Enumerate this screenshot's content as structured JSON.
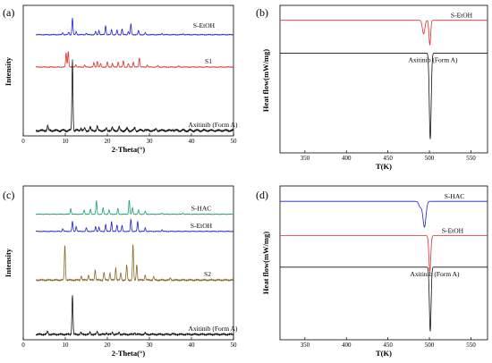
{
  "chart_data": [
    {
      "panel": "(a)",
      "type": "line",
      "xlabel": "2-Theta(°)",
      "ylabel": "Intensity",
      "xlim": [
        0,
        50
      ],
      "xticks": [
        0,
        10,
        20,
        30,
        40,
        50
      ],
      "series": [
        {
          "name": "S-EtOH",
          "color": "#1f1fd6",
          "offset": 0.8,
          "scale": 0.14,
          "peaks": [
            [
              9.4,
              0.12
            ],
            [
              10.8,
              0.15
            ],
            [
              11.7,
              1.0
            ],
            [
              12.6,
              0.18
            ],
            [
              15.0,
              0.1
            ],
            [
              17.2,
              0.2
            ],
            [
              18.0,
              0.25
            ],
            [
              19.6,
              0.55
            ],
            [
              21.0,
              0.3
            ],
            [
              22.3,
              0.28
            ],
            [
              23.5,
              0.35
            ],
            [
              25.0,
              0.2
            ],
            [
              25.6,
              0.65
            ],
            [
              27.4,
              0.25
            ],
            [
              29.0,
              0.12
            ],
            [
              33.0,
              0.08
            ],
            [
              38.0,
              0.06
            ]
          ]
        },
        {
          "name": "S1",
          "color": "#e02b2b",
          "offset": 0.53,
          "scale": 0.14,
          "peaks": [
            [
              10.2,
              0.85
            ],
            [
              10.7,
              0.95
            ],
            [
              12.5,
              0.15
            ],
            [
              14.6,
              0.12
            ],
            [
              16.8,
              0.25
            ],
            [
              17.6,
              0.35
            ],
            [
              18.4,
              0.2
            ],
            [
              20.0,
              0.3
            ],
            [
              21.2,
              0.22
            ],
            [
              22.6,
              0.3
            ],
            [
              23.8,
              0.38
            ],
            [
              25.0,
              0.2
            ],
            [
              26.2,
              0.3
            ],
            [
              27.6,
              0.55
            ],
            [
              29.5,
              0.12
            ],
            [
              32.0,
              0.08
            ],
            [
              37.0,
              0.06
            ]
          ]
        },
        {
          "name": "Axitinib (Form A)",
          "color": "#111111",
          "offset": 0.0,
          "scale": 0.6,
          "peaks": [
            [
              5.8,
              0.07
            ],
            [
              11.7,
              1.0
            ],
            [
              13.7,
              0.04
            ],
            [
              14.6,
              0.03
            ],
            [
              15.9,
              0.05
            ],
            [
              17.6,
              0.06
            ],
            [
              19.8,
              0.03
            ],
            [
              21.2,
              0.04
            ],
            [
              22.8,
              0.05
            ],
            [
              24.7,
              0.03
            ],
            [
              26.5,
              0.04
            ],
            [
              29.0,
              0.02
            ],
            [
              31.6,
              0.02
            ],
            [
              35.5,
              0.02
            ]
          ]
        }
      ]
    },
    {
      "panel": "(b)",
      "type": "line",
      "xlabel": "T(K)",
      "ylabel": "Heat flow(mW/mg)",
      "xlim": [
        320,
        570
      ],
      "xticks": [
        350,
        400,
        450,
        500,
        550
      ],
      "series": [
        {
          "name": "S-EtOH",
          "color": "#e02b2b",
          "baseline": 0.93,
          "dips": [
            [
              493,
              0.1,
              1.3
            ],
            [
              500.5,
              0.18,
              0.9
            ]
          ]
        },
        {
          "name": "Axitinib (Form A)",
          "color": "#111111",
          "baseline": 0.69,
          "dips": [
            [
              501,
              0.63,
              1.0
            ]
          ]
        }
      ]
    },
    {
      "panel": "(c)",
      "type": "line",
      "xlabel": "2-Theta(°)",
      "ylabel": "Intensity",
      "xlim": [
        0,
        50
      ],
      "xticks": [
        0,
        10,
        20,
        30,
        40,
        50
      ],
      "series": [
        {
          "name": "S-HAC",
          "color": "#1a9e77",
          "offset": 0.84,
          "scale": 0.1,
          "peaks": [
            [
              11.3,
              0.4
            ],
            [
              14.5,
              0.3
            ],
            [
              16.0,
              0.35
            ],
            [
              17.4,
              0.95
            ],
            [
              19.0,
              0.45
            ],
            [
              20.4,
              0.3
            ],
            [
              22.5,
              0.4
            ],
            [
              25.2,
              1.0
            ],
            [
              26.0,
              0.45
            ],
            [
              27.4,
              0.3
            ],
            [
              29.0,
              0.2
            ],
            [
              33.0,
              0.1
            ],
            [
              38.0,
              0.08
            ]
          ]
        },
        {
          "name": "S-EtOH",
          "color": "#1f1fd6",
          "offset": 0.72,
          "scale": 0.1,
          "peaks": [
            [
              9.4,
              0.2
            ],
            [
              11.7,
              0.7
            ],
            [
              12.6,
              0.35
            ],
            [
              15.0,
              0.25
            ],
            [
              17.2,
              0.35
            ],
            [
              18.0,
              0.3
            ],
            [
              19.6,
              0.5
            ],
            [
              21.0,
              0.7
            ],
            [
              22.3,
              0.45
            ],
            [
              23.5,
              0.4
            ],
            [
              25.6,
              0.85
            ],
            [
              27.2,
              0.7
            ],
            [
              29.0,
              0.25
            ],
            [
              33.0,
              0.12
            ]
          ]
        },
        {
          "name": "S2",
          "color": "#8a6a2a",
          "offset": 0.38,
          "scale": 0.25,
          "peaks": [
            [
              9.9,
              1.0
            ],
            [
              13.8,
              0.12
            ],
            [
              15.5,
              0.15
            ],
            [
              17.1,
              0.3
            ],
            [
              19.2,
              0.22
            ],
            [
              20.6,
              0.2
            ],
            [
              22.0,
              0.35
            ],
            [
              23.2,
              0.2
            ],
            [
              24.6,
              0.42
            ],
            [
              26.1,
              1.0
            ],
            [
              27.0,
              0.45
            ],
            [
              29.0,
              0.15
            ],
            [
              31.0,
              0.1
            ],
            [
              35.0,
              0.06
            ]
          ]
        },
        {
          "name": "Axitinib (Form A)",
          "color": "#111111",
          "offset": 0.0,
          "scale": 0.28,
          "peaks": [
            [
              5.8,
              0.08
            ],
            [
              11.7,
              1.0
            ],
            [
              13.7,
              0.05
            ],
            [
              15.9,
              0.06
            ],
            [
              17.6,
              0.07
            ],
            [
              19.8,
              0.04
            ],
            [
              21.2,
              0.05
            ],
            [
              22.8,
              0.06
            ],
            [
              26.5,
              0.05
            ],
            [
              29.0,
              0.03
            ],
            [
              35.5,
              0.02
            ]
          ]
        }
      ]
    },
    {
      "panel": "(d)",
      "type": "line",
      "xlabel": "T(K)",
      "ylabel": "Heat flow(mW/mg)",
      "xlim": [
        320,
        570
      ],
      "xticks": [
        350,
        400,
        450,
        500,
        550
      ],
      "series": [
        {
          "name": "S-HAC",
          "color": "#1f1fd6",
          "baseline": 0.93,
          "dips": [
            [
              489,
              0.04,
              1.5
            ],
            [
              494,
              0.18,
              1.6
            ]
          ]
        },
        {
          "name": "S-EtOH",
          "color": "#e02b2b",
          "baseline": 0.69,
          "dips": [
            [
              500.5,
              0.25,
              1.0
            ]
          ]
        },
        {
          "name": "Axitinib (Form A)",
          "color": "#111111",
          "baseline": 0.47,
          "dips": [
            [
              501,
              0.45,
              0.9
            ]
          ]
        }
      ]
    }
  ]
}
